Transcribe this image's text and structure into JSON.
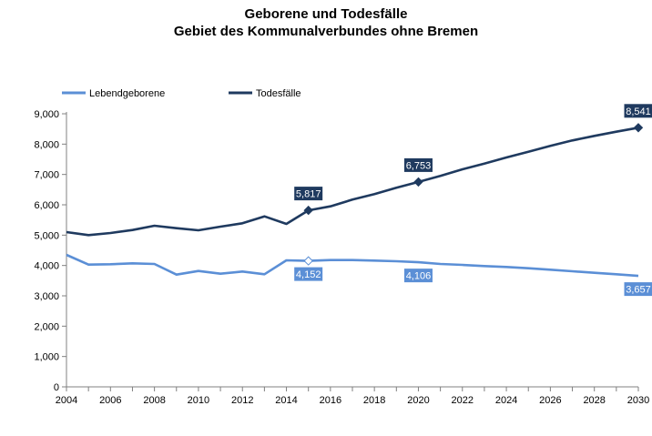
{
  "chart_data": {
    "type": "line",
    "title": "Geborene und Todesfälle",
    "subtitle": "Gebiet des Kommunalverbundes ohne Bremen",
    "ylim": [
      0,
      9000
    ],
    "yticks": [
      0,
      1000,
      2000,
      3000,
      4000,
      5000,
      6000,
      7000,
      8000,
      9000
    ],
    "ytick_labels": [
      "0",
      "1,000",
      "2,000",
      "3,000",
      "4,000",
      "5,000",
      "6,000",
      "7,000",
      "8,000",
      "9,000"
    ],
    "xlim": [
      2004,
      2030
    ],
    "xticks": [
      2004,
      2006,
      2008,
      2010,
      2012,
      2014,
      2016,
      2018,
      2020,
      2022,
      2024,
      2026,
      2028,
      2030
    ],
    "xtick_labels": [
      "2004",
      "2006",
      "2008",
      "2010",
      "2012",
      "2014",
      "2016",
      "2018",
      "2020",
      "2022",
      "2024",
      "2026",
      "2028",
      "2030"
    ],
    "x": [
      2004,
      2005,
      2006,
      2007,
      2008,
      2009,
      2010,
      2011,
      2012,
      2013,
      2014,
      2015,
      2016,
      2017,
      2018,
      2019,
      2020,
      2021,
      2022,
      2023,
      2024,
      2025,
      2026,
      2027,
      2028,
      2029,
      2030
    ],
    "legend_position": "top-left",
    "grid": false,
    "series": [
      {
        "name": "Lebendgeborene",
        "color": "#5B8FD6",
        "values": [
          4350,
          4030,
          4040,
          4070,
          4050,
          3700,
          3820,
          3730,
          3800,
          3710,
          4170,
          4152,
          4180,
          4180,
          4160,
          4140,
          4106,
          4050,
          4020,
          3980,
          3950,
          3910,
          3860,
          3810,
          3760,
          3710,
          3657
        ],
        "labels": [
          {
            "x": 2015,
            "value": 4152,
            "text": "4,152",
            "marker": "open-diamond"
          },
          {
            "x": 2020,
            "value": 4106,
            "text": "4,106",
            "marker": "none"
          },
          {
            "x": 2030,
            "value": 3657,
            "text": "3,657",
            "marker": "none"
          }
        ]
      },
      {
        "name": "Todesfälle",
        "color": "#1F3A5F",
        "values": [
          5100,
          5000,
          5070,
          5170,
          5310,
          5230,
          5160,
          5280,
          5390,
          5620,
          5370,
          5817,
          5950,
          6170,
          6350,
          6560,
          6753,
          6950,
          7170,
          7360,
          7560,
          7750,
          7940,
          8120,
          8270,
          8410,
          8541
        ],
        "labels": [
          {
            "x": 2015,
            "value": 5817,
            "text": "5,817",
            "marker": "filled-diamond"
          },
          {
            "x": 2020,
            "value": 6753,
            "text": "6,753",
            "marker": "filled-diamond"
          },
          {
            "x": 2030,
            "value": 8541,
            "text": "8,541",
            "marker": "filled-diamond"
          }
        ]
      }
    ]
  }
}
